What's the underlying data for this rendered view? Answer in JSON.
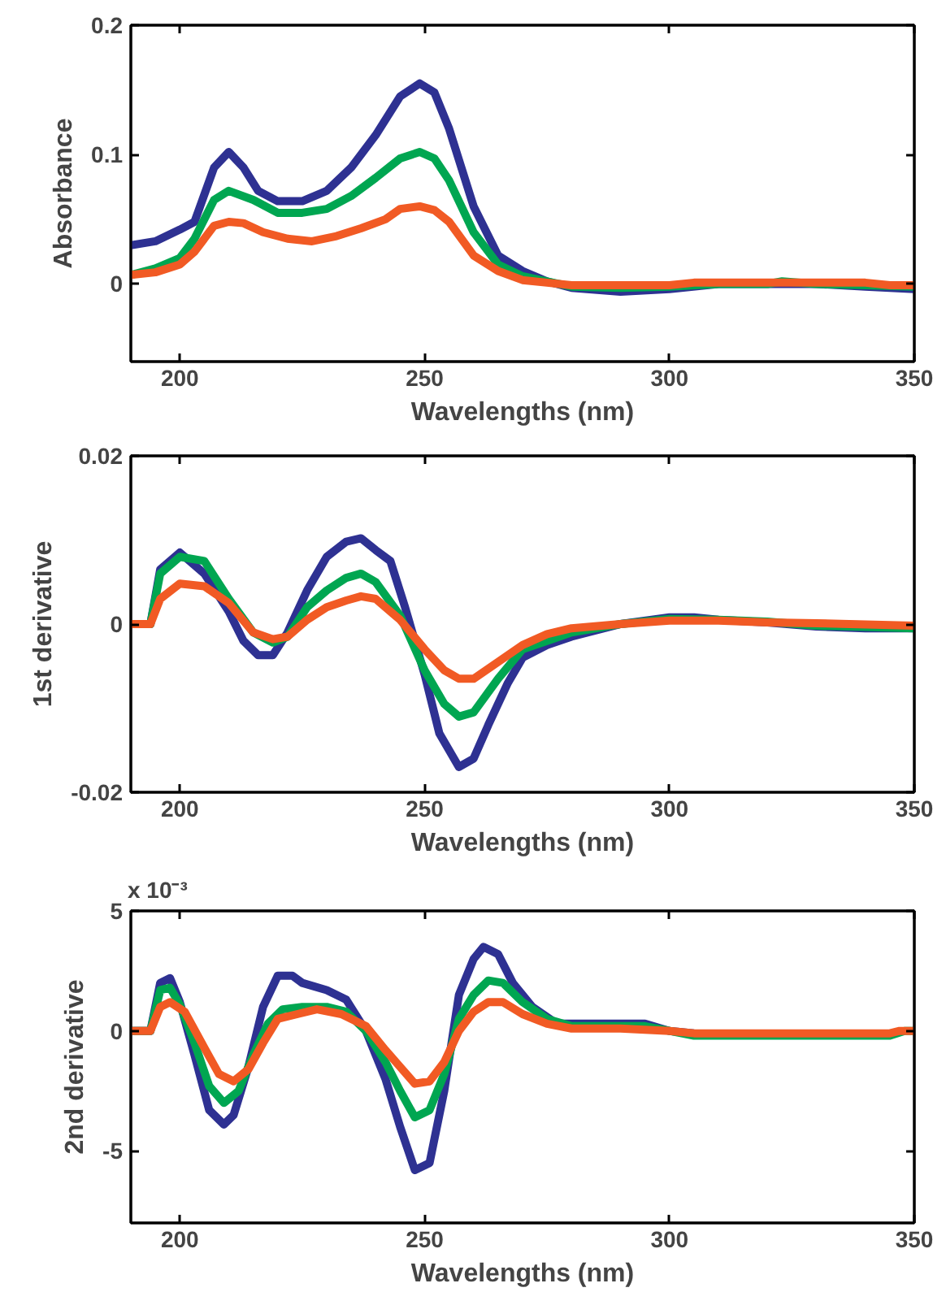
{
  "chart_data": [
    {
      "type": "line",
      "ylabel": "Absorbance",
      "xlabel": "Wavelengths (nm)",
      "xlim": [
        190,
        350
      ],
      "xticks": [
        200,
        250,
        300,
        350
      ],
      "ylim": [
        -0.06,
        0.2
      ],
      "yticks": [
        0,
        0.1,
        0.2
      ],
      "grid": false,
      "line_style": "solid",
      "marker": "none",
      "series": [
        {
          "color": "#2e3192",
          "x": [
            190,
            195,
            200,
            203,
            207,
            210,
            213,
            216,
            220,
            225,
            230,
            235,
            240,
            245,
            249,
            252,
            255,
            260,
            265,
            270,
            275,
            280,
            290,
            300,
            310,
            320,
            330,
            340,
            350
          ],
          "values": [
            0.03,
            0.033,
            0.042,
            0.048,
            0.09,
            0.102,
            0.09,
            0.072,
            0.064,
            0.064,
            0.072,
            0.09,
            0.115,
            0.145,
            0.155,
            0.148,
            0.12,
            0.06,
            0.022,
            0.01,
            0.002,
            -0.003,
            -0.006,
            -0.004,
            0,
            0,
            0,
            -0.002,
            -0.004
          ]
        },
        {
          "color": "#00a651",
          "x": [
            190,
            195,
            200,
            203,
            207,
            210,
            215,
            220,
            225,
            230,
            235,
            240,
            245,
            249,
            252,
            255,
            260,
            265,
            270,
            275,
            280,
            290,
            300,
            310,
            320,
            323,
            330,
            340,
            350
          ],
          "values": [
            0.007,
            0.012,
            0.02,
            0.035,
            0.065,
            0.072,
            0.065,
            0.055,
            0.055,
            0.058,
            0.068,
            0.082,
            0.097,
            0.102,
            0.097,
            0.08,
            0.04,
            0.015,
            0.006,
            0.002,
            -0.002,
            -0.003,
            -0.002,
            0,
            0,
            0.002,
            0,
            -0.001,
            -0.002
          ]
        },
        {
          "color": "#f15a24",
          "x": [
            190,
            195,
            200,
            203,
            207,
            210,
            213,
            217,
            222,
            227,
            232,
            237,
            242,
            245,
            249,
            252,
            255,
            260,
            265,
            270,
            275,
            280,
            300,
            305,
            320,
            340,
            345,
            350
          ],
          "values": [
            0.007,
            0.009,
            0.015,
            0.025,
            0.045,
            0.048,
            0.047,
            0.04,
            0.035,
            0.033,
            0.037,
            0.043,
            0.05,
            0.058,
            0.06,
            0.057,
            0.048,
            0.022,
            0.01,
            0.003,
            0.001,
            -0.001,
            -0.001,
            0.001,
            0.001,
            0.001,
            -0.001,
            -0.001
          ]
        }
      ]
    },
    {
      "type": "line",
      "ylabel": "1st derivative",
      "xlabel": "Wavelengths (nm)",
      "xlim": [
        190,
        350
      ],
      "xticks": [
        200,
        250,
        300,
        350
      ],
      "ylim": [
        -0.02,
        0.02
      ],
      "yticks": [
        -0.02,
        0,
        0.02
      ],
      "grid": false,
      "line_style": "solid",
      "marker": "none",
      "series": [
        {
          "color": "#2e3192",
          "x": [
            190,
            194,
            196,
            200,
            205,
            210,
            213,
            216,
            219,
            222,
            226,
            230,
            234,
            237,
            240,
            243,
            246,
            250,
            253,
            257,
            260,
            263,
            267,
            270,
            275,
            280,
            290,
            300,
            305,
            310,
            320,
            330,
            340,
            350
          ],
          "values": [
            0,
            0,
            0.0065,
            0.0085,
            0.006,
            0.0015,
            -0.002,
            -0.0037,
            -0.0037,
            -0.001,
            0.004,
            0.008,
            0.0098,
            0.0102,
            0.0088,
            0.0075,
            0.002,
            -0.006,
            -0.013,
            -0.017,
            -0.016,
            -0.012,
            -0.007,
            -0.004,
            -0.0025,
            -0.0015,
            0,
            0.0008,
            0.0008,
            0.0005,
            0.0002,
            -0.0003,
            -0.0005,
            -0.0005
          ]
        },
        {
          "color": "#00a651",
          "x": [
            190,
            194,
            196,
            200,
            205,
            210,
            215,
            219,
            222,
            226,
            230,
            234,
            237,
            240,
            245,
            250,
            254,
            257,
            260,
            265,
            270,
            275,
            280,
            290,
            300,
            310,
            320,
            330,
            350
          ],
          "values": [
            0,
            0,
            0.006,
            0.008,
            0.0075,
            0.003,
            -0.001,
            -0.0022,
            -0.0015,
            0.002,
            0.004,
            0.0055,
            0.006,
            0.005,
            0.001,
            -0.0055,
            -0.0095,
            -0.011,
            -0.0105,
            -0.0065,
            -0.003,
            -0.002,
            -0.001,
            0,
            0.0006,
            0.0005,
            0.0003,
            -0.0002,
            -0.0005
          ]
        },
        {
          "color": "#f15a24",
          "x": [
            190,
            194,
            196,
            200,
            205,
            210,
            215,
            219,
            222,
            226,
            230,
            234,
            237,
            240,
            245,
            250,
            254,
            257,
            260,
            265,
            270,
            275,
            280,
            290,
            300,
            310,
            320,
            330,
            350
          ],
          "values": [
            0,
            0,
            0.003,
            0.0048,
            0.0045,
            0.0025,
            -0.001,
            -0.0018,
            -0.0015,
            0.0005,
            0.002,
            0.0028,
            0.0033,
            0.003,
            0.0005,
            -0.003,
            -0.0055,
            -0.0065,
            -0.0065,
            -0.0045,
            -0.0025,
            -0.0012,
            -0.0005,
            0,
            0.0004,
            0.0004,
            0.0002,
            0.0001,
            -0.0002
          ]
        }
      ]
    },
    {
      "type": "line",
      "ylabel": "2nd derivative",
      "xlabel": "Wavelengths (nm)",
      "annotations": [
        "x 10⁻³"
      ],
      "xlim": [
        190,
        350
      ],
      "xticks": [
        200,
        250,
        300,
        350
      ],
      "ylim": [
        -8,
        5
      ],
      "yticks": [
        -5,
        0,
        5
      ],
      "grid": false,
      "line_style": "solid",
      "marker": "none",
      "series": [
        {
          "color": "#2e3192",
          "x": [
            190,
            194,
            196,
            198,
            200,
            203,
            206,
            209,
            211,
            214,
            217,
            220,
            223,
            225,
            230,
            234,
            238,
            242,
            245,
            248,
            251,
            254,
            257,
            260,
            262,
            265,
            268,
            272,
            277,
            285,
            295,
            300,
            305
          ],
          "values": [
            0,
            0,
            2.0,
            2.2,
            1.2,
            -1,
            -3.3,
            -3.9,
            -3.5,
            -1.5,
            1,
            2.3,
            2.3,
            2.0,
            1.7,
            1.3,
            0,
            -2,
            -4,
            -5.8,
            -5.5,
            -2.5,
            1.5,
            3,
            3.5,
            3.2,
            2,
            1,
            0.3,
            0.3,
            0.3,
            0,
            -0.1
          ]
        },
        {
          "color": "#00a651",
          "x": [
            190,
            194,
            196,
            198,
            200,
            203,
            206,
            209,
            212,
            215,
            218,
            221,
            225,
            230,
            234,
            238,
            242,
            245,
            248,
            251,
            254,
            257,
            260,
            263,
            266,
            270,
            275,
            280,
            290,
            295,
            300,
            305,
            345,
            348,
            350
          ],
          "values": [
            0,
            0,
            1.7,
            1.8,
            1.1,
            -0.5,
            -2.3,
            -3,
            -2.5,
            -1,
            0.3,
            0.9,
            1.0,
            1.0,
            0.8,
            0,
            -1.3,
            -2.5,
            -3.6,
            -3.3,
            -1.8,
            0.5,
            1.5,
            2.1,
            2.0,
            1.2,
            0.5,
            0.2,
            0.2,
            0.2,
            0,
            -0.2,
            -0.2,
            0,
            0
          ]
        },
        {
          "color": "#f15a24",
          "x": [
            190,
            194,
            196,
            198,
            201,
            205,
            208,
            211,
            214,
            217,
            220,
            224,
            228,
            233,
            238,
            242,
            245,
            248,
            251,
            254,
            257,
            260,
            263,
            266,
            270,
            275,
            280,
            290,
            300,
            305,
            345,
            347,
            350
          ],
          "values": [
            0,
            0,
            1.0,
            1.2,
            0.8,
            -0.7,
            -1.8,
            -2.1,
            -1.6,
            -0.5,
            0.5,
            0.7,
            0.9,
            0.7,
            0.2,
            -0.8,
            -1.5,
            -2.2,
            -2.1,
            -1.3,
            0,
            0.8,
            1.2,
            1.2,
            0.7,
            0.3,
            0.1,
            0.1,
            0,
            -0.1,
            -0.1,
            0,
            0
          ]
        }
      ]
    }
  ]
}
